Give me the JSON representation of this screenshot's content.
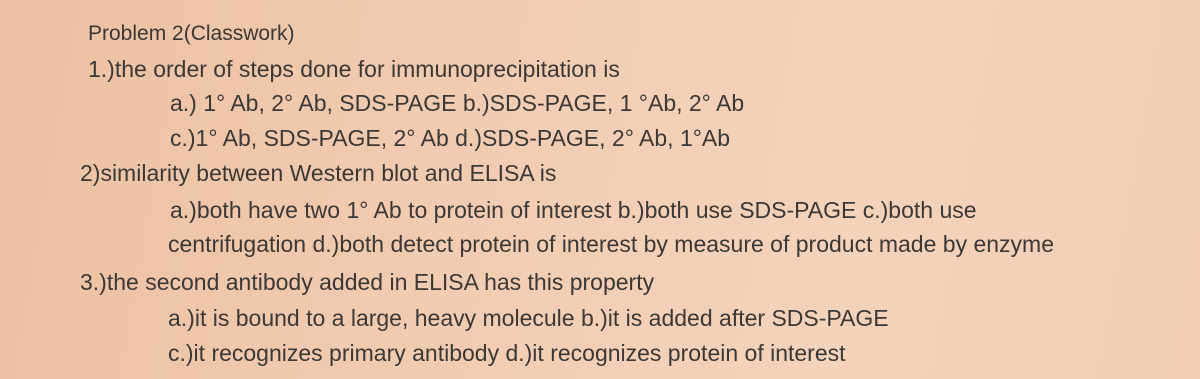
{
  "title": "Problem 2(Classwork)",
  "questions": [
    {
      "prompt": "1.)the order of steps done for immunoprecipitation is",
      "lines": [
        "a.) 1° Ab, 2° Ab, SDS-PAGE b.)SDS-PAGE, 1 °Ab, 2° Ab",
        "c.)1° Ab, SDS-PAGE, 2° Ab d.)SDS-PAGE, 2° Ab, 1°Ab"
      ]
    },
    {
      "prompt": "2)similarity between Western blot and ELISA is",
      "lines": [
        "a.)both have two 1° Ab to protein of interest b.)both use SDS-PAGE c.)both use",
        "centrifugation d.)both detect protein of interest by measure of product made by enzyme"
      ]
    },
    {
      "prompt": "3.)the second antibody added in ELISA has this property",
      "lines": [
        "a.)it is bound to a large, heavy molecule b.)it is added after SDS-PAGE",
        "c.)it recognizes primary antibody d.)it recognizes protein of interest"
      ]
    }
  ]
}
